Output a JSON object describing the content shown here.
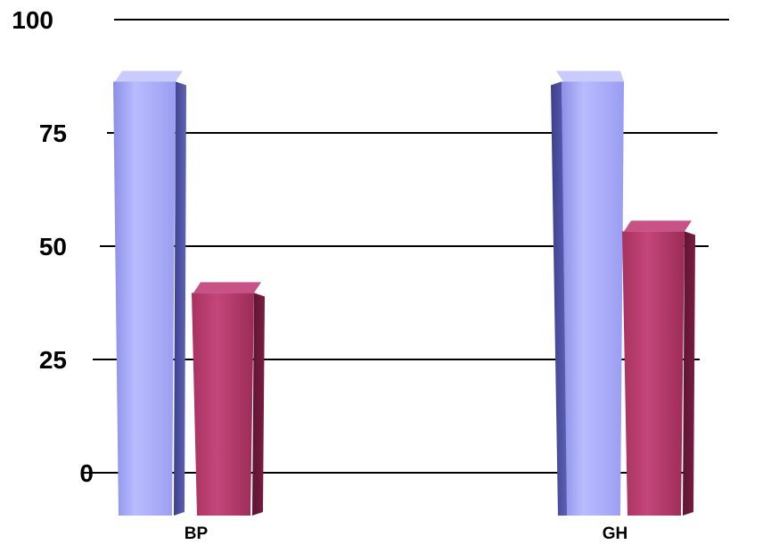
{
  "chart_data": {
    "type": "bar",
    "categories": [
      "BP",
      "GH"
    ],
    "series": [
      {
        "values": [
          90,
          90
        ],
        "color": "#a6a9f5"
      },
      {
        "values": [
          47,
          61
        ],
        "color": "#b23a6b"
      }
    ],
    "yticks": [
      "0",
      "25",
      "50",
      "75",
      "100"
    ],
    "ytick_values": [
      0,
      25,
      50,
      75,
      100
    ],
    "ylim": [
      0,
      100
    ],
    "grid": true,
    "style": "3d-perspective"
  }
}
